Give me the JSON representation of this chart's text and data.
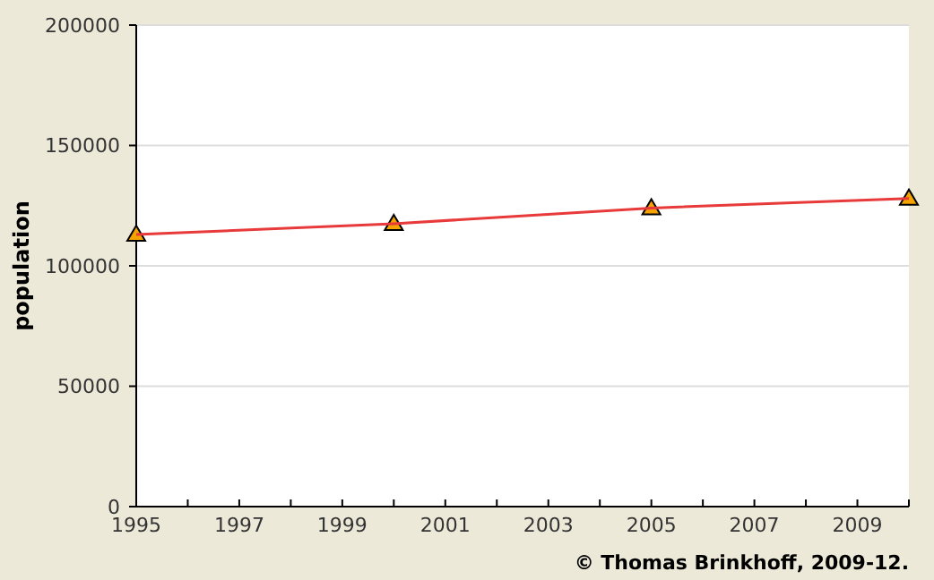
{
  "chart_data": {
    "type": "line",
    "ylabel": "population",
    "x": [
      1995,
      2000,
      2005,
      2010
    ],
    "series": [
      {
        "color": "#e83a3a",
        "values": [
          113000,
          117500,
          124000,
          128000
        ]
      }
    ],
    "xlim": [
      1995,
      2010
    ],
    "xticks": [
      1995,
      {
        "value": 1996,
        "label": null
      },
      1997,
      {
        "value": 1998,
        "label": null
      },
      1999,
      {
        "value": 2000,
        "label": null
      },
      2001,
      {
        "value": 2002,
        "label": null
      },
      2003,
      {
        "value": 2004,
        "label": null
      },
      2005,
      {
        "value": 2006,
        "label": null
      },
      2007,
      {
        "value": 2008,
        "label": null
      },
      2009,
      {
        "value": 2010,
        "label": null
      }
    ],
    "ylim": [
      0,
      200000
    ],
    "yticks": [
      0,
      50000,
      100000,
      150000,
      200000
    ],
    "grid": "y",
    "marker": "triangle",
    "line_style": "solid",
    "annotations": [
      "© Thomas Brinkhoff, 2009-12."
    ]
  }
}
